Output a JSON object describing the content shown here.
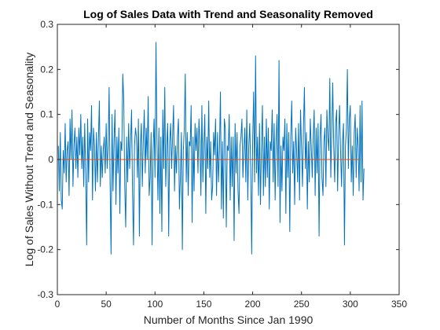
{
  "chart_data": {
    "type": "line",
    "title": "Log of Sales Data with Trend and Seasonality Removed",
    "xlabel": "Number of Months Since Jan 1990",
    "ylabel": "Log of Sales Without Trend and Seasonality",
    "xlim": [
      0,
      350
    ],
    "ylim": [
      -0.3,
      0.3
    ],
    "xticks": [
      0,
      50,
      100,
      150,
      200,
      250,
      300,
      350
    ],
    "yticks": [
      -0.3,
      -0.2,
      -0.1,
      0,
      0.1,
      0.2,
      0.3
    ],
    "xtick_labels": [
      "0",
      "50",
      "100",
      "150",
      "200",
      "250",
      "300",
      "350"
    ],
    "ytick_labels": [
      "-0.3",
      "-0.2",
      "-0.1",
      "0",
      "0.1",
      "0.2",
      "0.3"
    ],
    "grid": false,
    "legend": "none",
    "series": [
      {
        "color": "#0072BD",
        "x_start": 1,
        "x_step": 1,
        "values": [
          0.03,
          -0.07,
          0.06,
          -0.09,
          -0.11,
          0.02,
          -0.03,
          0.08,
          -0.05,
          0.02,
          0.04,
          -0.08,
          0.09,
          0.0,
          0.11,
          -0.06,
          0.03,
          0.07,
          -0.02,
          0.05,
          -0.04,
          0.07,
          0.01,
          0.1,
          -0.02,
          0.05,
          -0.06,
          0.08,
          -0.03,
          -0.19,
          0.09,
          -0.05,
          0.06,
          0.02,
          0.12,
          -0.09,
          0.07,
          0.03,
          -0.07,
          0.06,
          -0.05,
          0.04,
          0.13,
          -0.06,
          0.03,
          -0.04,
          0.02,
          0.05,
          -0.03,
          0.08,
          -0.02,
          0.03,
          0.16,
          -0.05,
          -0.21,
          0.1,
          -0.07,
          0.04,
          0.11,
          -0.1,
          0.05,
          -0.03,
          0.07,
          -0.12,
          0.04,
          0.02,
          0.19,
          0.13,
          -0.06,
          -0.15,
          0.05,
          -0.05,
          0.08,
          -0.02,
          0.04,
          0.11,
          -0.08,
          -0.19,
          0.03,
          0.07,
          0.05,
          -0.04,
          0.09,
          -0.17,
          0.03,
          0.08,
          -0.06,
          0.04,
          0.11,
          -0.03,
          0.07,
          0.0,
          0.14,
          -0.08,
          -0.04,
          0.06,
          -0.19,
          0.02,
          0.09,
          -0.04,
          0.26,
          0.04,
          -0.09,
          0.07,
          -0.12,
          0.05,
          -0.16,
          0.11,
          -0.02,
          0.16,
          -0.06,
          0.03,
          0.08,
          -0.17,
          0.04,
          0.08,
          -0.02,
          0.05,
          0.12,
          -0.07,
          0.03,
          -0.03,
          0.05,
          0.09,
          -0.11,
          -0.04,
          0.06,
          -0.2,
          0.02,
          0.07,
          0.19,
          -0.05,
          0.06,
          -0.08,
          0.04,
          0.03,
          0.12,
          -0.14,
          0.05,
          -0.07,
          0.08,
          0.02,
          0.07,
          -0.03,
          0.09,
          0.04,
          -0.08,
          0.12,
          -0.05,
          0.03,
          0.1,
          -0.12,
          0.05,
          -0.02,
          0.13,
          -0.04,
          0.04,
          -0.09,
          -0.06,
          0.06,
          0.01,
          0.09,
          -0.08,
          0.06,
          -0.05,
          0.02,
          0.15,
          -0.11,
          0.04,
          -0.13,
          0.09,
          0.07,
          -0.15,
          0.03,
          0.02,
          0.1,
          -0.09,
          0.05,
          -0.06,
          0.05,
          -0.18,
          0.08,
          -0.03,
          0.06,
          -0.07,
          -0.12,
          0.03,
          0.05,
          0.09,
          -0.04,
          0.02,
          0.07,
          -0.05,
          0.11,
          -0.09,
          0.03,
          0.08,
          -0.02,
          -0.21,
          0.04,
          0.15,
          -0.05,
          0.23,
          -0.03,
          0.05,
          -0.08,
          0.08,
          -0.1,
          0.03,
          0.12,
          -0.08,
          0.05,
          -0.06,
          0.09,
          -0.04,
          0.07,
          -0.11,
          0.04,
          0.02,
          0.11,
          -0.05,
          0.08,
          -0.09,
          0.04,
          0.1,
          -0.06,
          0.22,
          -0.14,
          0.03,
          -0.07,
          0.05,
          0.02,
          0.09,
          -0.12,
          0.08,
          -0.04,
          0.06,
          -0.16,
          0.05,
          0.13,
          -0.03,
          0.04,
          -0.1,
          0.07,
          0.02,
          -0.05,
          0.08,
          -0.09,
          0.11,
          0.03,
          -0.06,
          0.07,
          0.16,
          -0.02,
          0.06,
          -0.11,
          0.04,
          -0.05,
          0.09,
          0.03,
          -0.04,
          0.05,
          0.11,
          -0.08,
          0.07,
          -0.03,
          0.08,
          -0.17,
          0.05,
          0.1,
          -0.04,
          -0.08,
          0.04,
          0.07,
          -0.06,
          0.11,
          0.05,
          0.02,
          0.18,
          -0.04,
          0.06,
          0.17,
          0.03,
          -0.05,
          0.08,
          0.11,
          -0.07,
          0.05,
          0.12,
          0.02,
          -0.06,
          0.04,
          0.08,
          -0.19,
          0.03,
          0.07,
          0.2,
          -0.02,
          0.09,
          0.12,
          -0.05,
          0.03,
          -0.08,
          0.06,
          0.1,
          -0.04,
          0.07,
          0.03,
          -0.07,
          0.12,
          -0.05,
          0.13,
          -0.09,
          -0.02
        ]
      },
      {
        "color": "#D95319",
        "x": [
          1,
          310
        ],
        "values": [
          0,
          0
        ]
      }
    ]
  }
}
